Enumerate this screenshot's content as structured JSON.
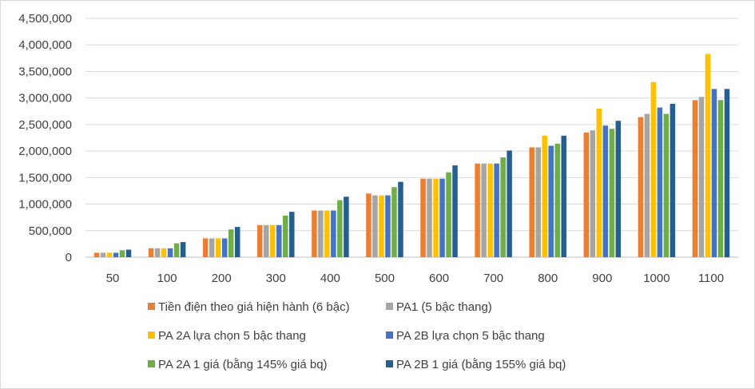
{
  "chart_data": {
    "type": "bar",
    "title": "",
    "xlabel": "",
    "ylabel": "",
    "categories": [
      "50",
      "100",
      "200",
      "300",
      "400",
      "500",
      "600",
      "700",
      "800",
      "900",
      "1000",
      "1100"
    ],
    "ylim": [
      0,
      4500000
    ],
    "yticks": [
      0,
      500000,
      1000000,
      1500000,
      2000000,
      2500000,
      3000000,
      3500000,
      4000000,
      4500000
    ],
    "ytick_labels": [
      "0",
      "500,000",
      "1,000,000",
      "1,500,000",
      "2,000,000",
      "2,500,000",
      "3,000,000",
      "3,500,000",
      "4,000,000",
      "4,500,000"
    ],
    "grid": true,
    "legend_position": "bottom",
    "series": [
      {
        "name": "Tiền điện theo giá hiện hành (6 bậc)",
        "color": "#ED7D31",
        "values": [
          84000,
          168000,
          355000,
          605000,
          880000,
          1200000,
          1480000,
          1765000,
          2070000,
          2350000,
          2640000,
          2960000
        ]
      },
      {
        "name": "PA1 (5 bậc thang)",
        "color": "#A5A5A5",
        "values": [
          84000,
          168000,
          355000,
          605000,
          880000,
          1165000,
          1480000,
          1765000,
          2070000,
          2390000,
          2700000,
          3020000
        ]
      },
      {
        "name": "PA 2A lựa chọn 5 bậc thang",
        "color": "#FFC000",
        "values": [
          84000,
          168000,
          355000,
          605000,
          880000,
          1165000,
          1480000,
          1765000,
          2290000,
          2800000,
          3300000,
          3830000
        ]
      },
      {
        "name": "PA 2B lựa chọn 5 bậc thang",
        "color": "#4472C4",
        "values": [
          84000,
          168000,
          355000,
          605000,
          880000,
          1165000,
          1480000,
          1765000,
          2100000,
          2480000,
          2820000,
          3170000
        ]
      },
      {
        "name": "PA 2A 1 giá (bằng 145% giá bq)",
        "color": "#70AD47",
        "values": [
          131000,
          262000,
          523000,
          785000,
          1075000,
          1320000,
          1600000,
          1880000,
          2140000,
          2420000,
          2700000,
          2960000
        ]
      },
      {
        "name": "PA 2B 1 giá (bằng 155% giá bq)",
        "color": "#255E91",
        "values": [
          143000,
          285000,
          570000,
          855000,
          1140000,
          1420000,
          1730000,
          2010000,
          2290000,
          2570000,
          2890000,
          3170000
        ]
      }
    ]
  }
}
